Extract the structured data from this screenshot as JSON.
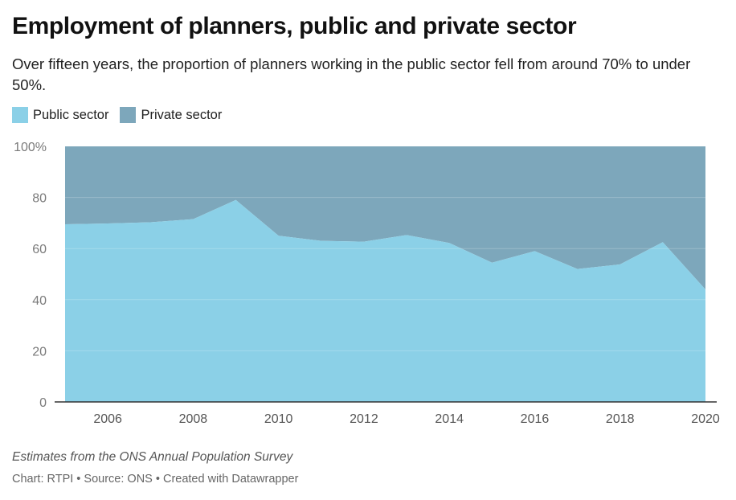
{
  "title": "Employment of planners, public and private sector",
  "subtitle": "Over fifteen years, the proportion of planners working in the public sector fell from around 70% to under 50%.",
  "notes": "Estimates from the ONS Annual Population Survey",
  "credits": "Chart: RTPI • Source: ONS • Created with Datawrapper",
  "colors": {
    "public": "#8bd0e7",
    "private": "#7da7bb",
    "axis": "#333333",
    "grid": "#d9d9d9"
  },
  "chart_data": {
    "type": "area",
    "stacked": true,
    "x": [
      2005,
      2006,
      2007,
      2008,
      2009,
      2010,
      2011,
      2012,
      2013,
      2014,
      2015,
      2016,
      2017,
      2018,
      2019,
      2020
    ],
    "series": [
      {
        "name": "Public sector",
        "values": [
          69.5,
          69.8,
          70.3,
          71.5,
          79,
          65,
          63,
          62.7,
          65.3,
          62.2,
          54.5,
          59,
          52,
          53.8,
          62.5,
          44
        ]
      },
      {
        "name": "Private sector",
        "values": [
          30.5,
          30.2,
          29.7,
          28.5,
          21,
          35,
          37,
          37.3,
          34.7,
          37.8,
          45.5,
          41,
          48,
          46.2,
          37.5,
          56
        ]
      }
    ],
    "y_ticks": [
      "100%",
      "80",
      "60",
      "40",
      "20",
      "0"
    ],
    "y_tick_values": [
      100,
      80,
      60,
      40,
      20,
      0
    ],
    "x_ticks": [
      "2006",
      "2008",
      "2010",
      "2012",
      "2014",
      "2016",
      "2018",
      "2020"
    ],
    "x_tick_values": [
      2006,
      2008,
      2010,
      2012,
      2014,
      2016,
      2018,
      2020
    ],
    "ylim": [
      0,
      100
    ],
    "xlim": [
      2005,
      2020
    ],
    "xlabel": "",
    "ylabel": "",
    "grid": true,
    "legend": "top-left"
  }
}
